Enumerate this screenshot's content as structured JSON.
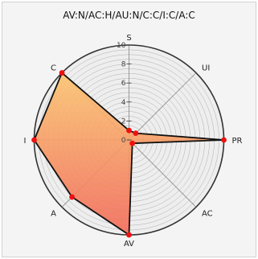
{
  "chart_data": {
    "type": "radar",
    "title": "AV:N/AC:H/AU:N/C:C/I:C/A:C",
    "axes": [
      "S",
      "UI",
      "PR",
      "AC",
      "AV",
      "A",
      "I",
      "C"
    ],
    "series": [
      {
        "values": [
          1,
          1,
          10,
          0.5,
          10,
          8.5,
          10,
          10
        ]
      }
    ],
    "rlim": [
      0,
      10
    ],
    "ticks": [
      0,
      2,
      4,
      6,
      8,
      10
    ],
    "grid": true,
    "legend": "none",
    "colors": {
      "fill_top": "#fcc46f",
      "fill_bottom": "#f26a5a",
      "outline": "#111111",
      "marker": "#ee1111",
      "grid": "#999999",
      "axis": "#777777",
      "frame_bg": "#f4f4f4",
      "plot_bg": "#eeeeee"
    }
  }
}
